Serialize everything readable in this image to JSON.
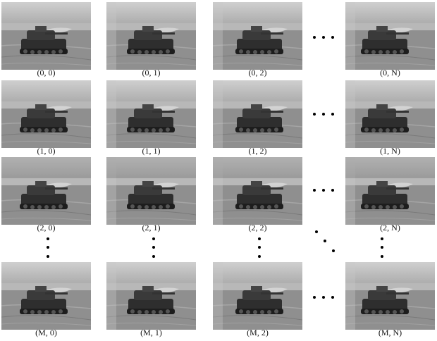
{
  "grid": {
    "rows": [
      {
        "labels": [
          "(0, 0)",
          "(0, 1)",
          "(0, 2)",
          "(0, N)"
        ]
      },
      {
        "labels": [
          "(1, 0)",
          "(1, 1)",
          "(1, 2)",
          "(1, N)"
        ]
      },
      {
        "labels": [
          "(2, 0)",
          "(2, 1)",
          "(2, 2)",
          "(2, N)"
        ]
      },
      {
        "labels": [
          "(M, 0)",
          "(M, 1)",
          "(M, 2)",
          "(M, N)"
        ]
      }
    ]
  },
  "colors": {
    "sky": "#cfcfcf",
    "field": "#8f8f8f",
    "tank": "#2e2e2e",
    "seam": "#bdbdbd"
  }
}
